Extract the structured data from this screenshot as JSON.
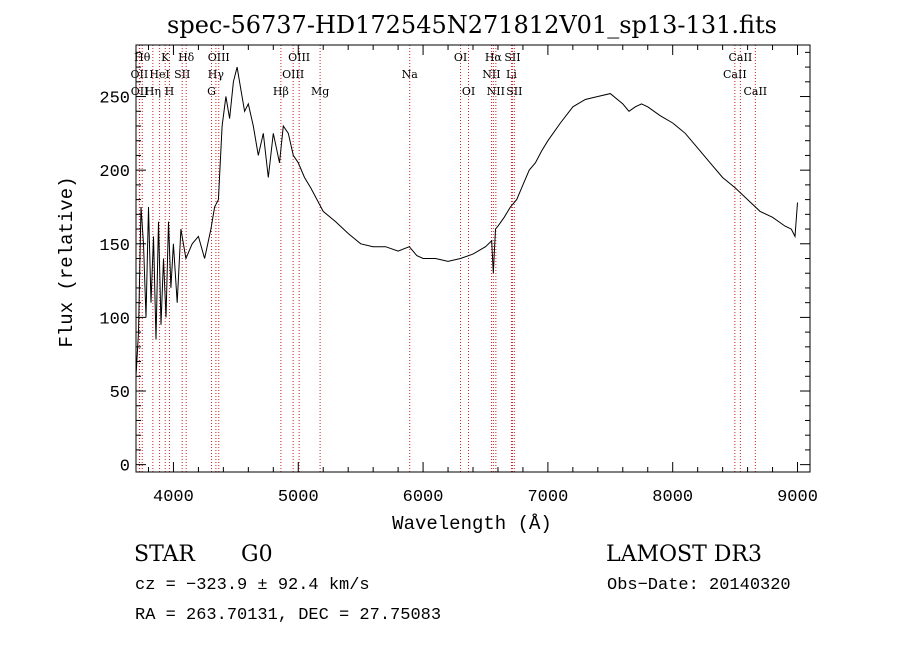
{
  "chart_data": {
    "type": "line",
    "title": "spec-56737-HD172545N271812V01_sp13-131.fits",
    "xlabel": "Wavelength (Å)",
    "ylabel": "Flux (relative)",
    "xlim": [
      3700,
      9100
    ],
    "ylim": [
      -5,
      285
    ],
    "x_ticks": [
      4000,
      5000,
      6000,
      7000,
      8000,
      9000
    ],
    "x_tick_labels": [
      "4000",
      "5000",
      "6000",
      "7000",
      "8000",
      "9000"
    ],
    "y_ticks": [
      0,
      50,
      100,
      150,
      200,
      250
    ],
    "y_tick_labels": [
      "0",
      "50",
      "100",
      "150",
      "200",
      "250"
    ],
    "grid": false,
    "series": [
      {
        "name": "flux",
        "color": "#000000",
        "x": [
          3700,
          3720,
          3740,
          3760,
          3780,
          3800,
          3820,
          3840,
          3860,
          3880,
          3900,
          3920,
          3940,
          3960,
          3980,
          4000,
          4030,
          4060,
          4100,
          4150,
          4200,
          4250,
          4300,
          4330,
          4360,
          4390,
          4420,
          4450,
          4480,
          4510,
          4540,
          4570,
          4600,
          4640,
          4680,
          4720,
          4760,
          4800,
          4850,
          4880,
          4920,
          4960,
          5000,
          5050,
          5100,
          5150,
          5200,
          5300,
          5400,
          5500,
          5600,
          5700,
          5800,
          5890,
          5950,
          6000,
          6100,
          6200,
          6300,
          6400,
          6500,
          6550,
          6563,
          6580,
          6600,
          6650,
          6700,
          6750,
          6800,
          6850,
          6900,
          6950,
          7000,
          7100,
          7200,
          7300,
          7400,
          7500,
          7600,
          7650,
          7700,
          7750,
          7800,
          7900,
          8000,
          8100,
          8200,
          8300,
          8400,
          8500,
          8600,
          8700,
          8800,
          8900,
          8950,
          8980,
          9000
        ],
        "y": [
          60,
          90,
          175,
          150,
          100,
          175,
          110,
          155,
          85,
          165,
          95,
          140,
          100,
          165,
          120,
          150,
          110,
          160,
          140,
          150,
          155,
          140,
          160,
          175,
          180,
          230,
          250,
          235,
          260,
          270,
          255,
          240,
          245,
          230,
          210,
          225,
          195,
          225,
          205,
          230,
          225,
          210,
          205,
          195,
          188,
          180,
          172,
          165,
          157,
          150,
          148,
          148,
          145,
          148,
          142,
          140,
          140,
          138,
          140,
          143,
          148,
          152,
          130,
          160,
          162,
          168,
          175,
          180,
          190,
          200,
          205,
          213,
          220,
          232,
          243,
          248,
          250,
          252,
          245,
          240,
          243,
          245,
          243,
          237,
          232,
          225,
          215,
          205,
          195,
          188,
          180,
          172,
          168,
          162,
          160,
          155,
          178
        ]
      }
    ],
    "line_markers": [
      {
        "label": "OII",
        "x": 3727,
        "row": 2
      },
      {
        "label": "OII",
        "x": 3729,
        "row": 3
      },
      {
        "label": "Hθ",
        "x": 3750,
        "row": 1
      },
      {
        "label": "Hη",
        "x": 3835,
        "row": 3
      },
      {
        "label": "HeI",
        "x": 3889,
        "row": 2
      },
      {
        "label": "K",
        "x": 3934,
        "row": 1
      },
      {
        "label": "H",
        "x": 3968,
        "row": 3
      },
      {
        "label": "SII",
        "x": 4070,
        "row": 2
      },
      {
        "label": "Hδ",
        "x": 4102,
        "row": 1
      },
      {
        "label": "Hγ",
        "x": 4340,
        "row": 2
      },
      {
        "label": "OIII",
        "x": 4363,
        "row": 1
      },
      {
        "label": "G",
        "x": 4305,
        "row": 3
      },
      {
        "label": "Hβ",
        "x": 4861,
        "row": 3
      },
      {
        "label": "OIII",
        "x": 4959,
        "row": 2
      },
      {
        "label": "OIII",
        "x": 5007,
        "row": 1
      },
      {
        "label": "Mg",
        "x": 5175,
        "row": 3
      },
      {
        "label": "Na",
        "x": 5893,
        "row": 2
      },
      {
        "label": "OI",
        "x": 6300,
        "row": 1
      },
      {
        "label": "OI",
        "x": 6364,
        "row": 3
      },
      {
        "label": "NII",
        "x": 6548,
        "row": 2
      },
      {
        "label": "Hα",
        "x": 6563,
        "row": 1
      },
      {
        "label": "NII",
        "x": 6583,
        "row": 3
      },
      {
        "label": "Li",
        "x": 6708,
        "row": 2
      },
      {
        "label": "SII",
        "x": 6716,
        "row": 1
      },
      {
        "label": "SII",
        "x": 6731,
        "row": 3
      },
      {
        "label": "CaII",
        "x": 8498,
        "row": 2
      },
      {
        "label": "CaII",
        "x": 8542,
        "row": 1
      },
      {
        "label": "CaII",
        "x": 8662,
        "row": 3
      }
    ],
    "marker_color": "#cc2222"
  },
  "info": {
    "object_class": "STAR",
    "subclass": "G0",
    "survey": "LAMOST DR3",
    "cz": "cz = −323.9 ± 92.4 km/s",
    "obs_date": "Obs−Date: 20140320",
    "coords": "RA = 263.70131, DEC =  27.75083"
  }
}
